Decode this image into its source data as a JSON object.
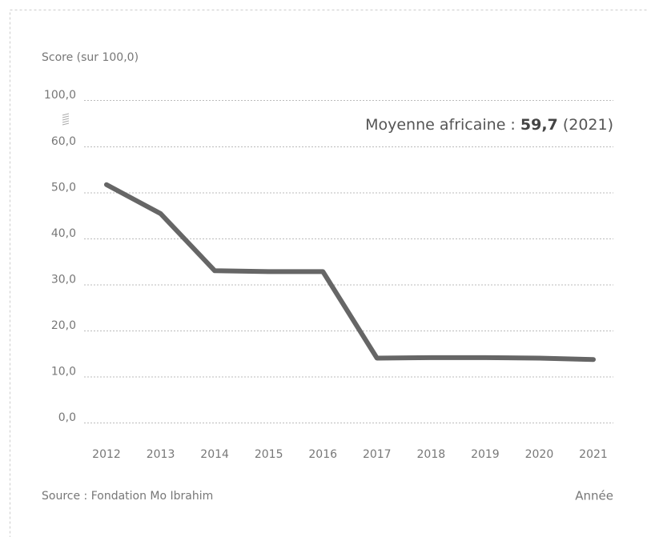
{
  "chart_data": {
    "type": "line",
    "y_axis_label": "Score (sur 100,0)",
    "annotation": {
      "text": "Moyenne africaine :",
      "value": "59,7",
      "year": "(2021)"
    },
    "source": "Source : Fondation Mo Ibrahim",
    "x_axis_label": "Année",
    "categories": [
      "2012",
      "2013",
      "2014",
      "2015",
      "2016",
      "2017",
      "2018",
      "2019",
      "2020",
      "2021"
    ],
    "series": [
      {
        "name": "Score",
        "color": "#666666",
        "values": [
          51.7,
          45.4,
          33.0,
          32.8,
          32.8,
          14.0,
          14.1,
          14.1,
          14.0,
          13.7
        ]
      }
    ],
    "ylim": [
      0,
      100
    ],
    "yticks": [
      {
        "value": 0,
        "label": "0,0"
      },
      {
        "value": 10,
        "label": "10,0"
      },
      {
        "value": 20,
        "label": "20,0"
      },
      {
        "value": 30,
        "label": "30,0"
      },
      {
        "value": 40,
        "label": "40,0"
      },
      {
        "value": 50,
        "label": "50,0"
      },
      {
        "value": 60,
        "label": "60,0"
      },
      {
        "value": 100,
        "label": "100,0"
      }
    ],
    "axis_break": [
      60,
      100
    ],
    "grid": true
  }
}
